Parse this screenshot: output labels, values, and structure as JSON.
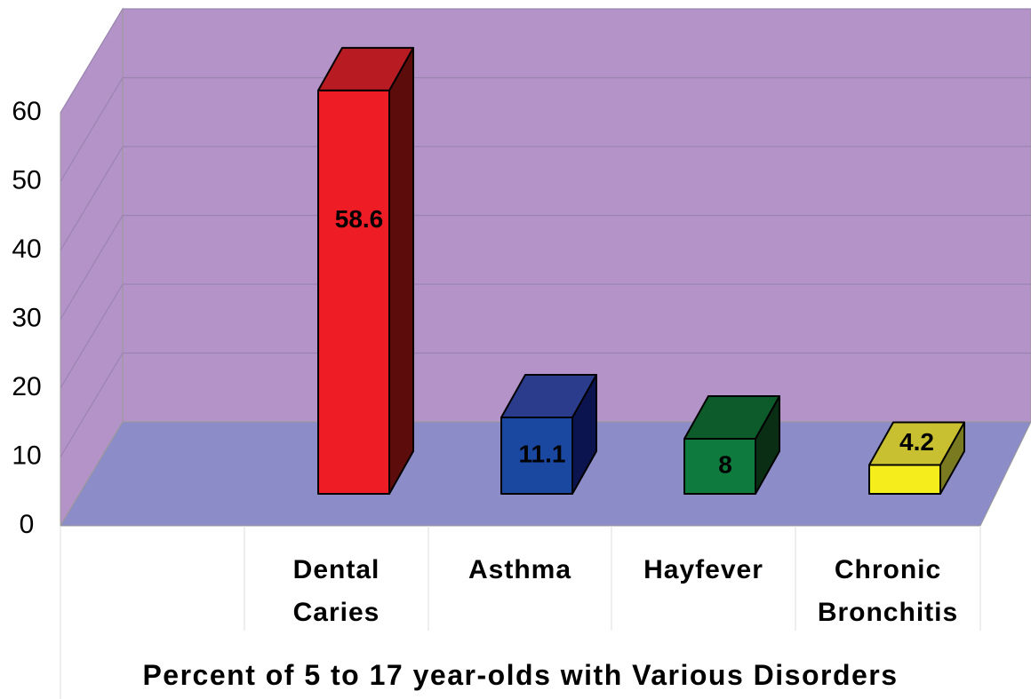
{
  "chart_data": {
    "type": "bar3d",
    "title": "Percent of 5 to 17 year-olds with Various Disorders",
    "categories": [
      "Dental Caries",
      "Asthma",
      "Hayfever",
      "Chronic Bronchitis"
    ],
    "values": [
      58.6,
      11.1,
      8,
      4.2
    ],
    "colors": [
      "#ee1c25",
      "#1a47a0",
      "#0e7a3e",
      "#f5ee1c"
    ],
    "top_colors": [
      "#b81c22",
      "#2b3c8c",
      "#0d5a2a",
      "#c8c030"
    ],
    "side_colors": [
      "#5c0c0a",
      "#0c1450",
      "#0a2e14",
      "#7a7a20"
    ],
    "ylim": [
      0,
      60
    ],
    "yticks": [
      0,
      10,
      20,
      30,
      40,
      50,
      60
    ],
    "grid": true
  }
}
